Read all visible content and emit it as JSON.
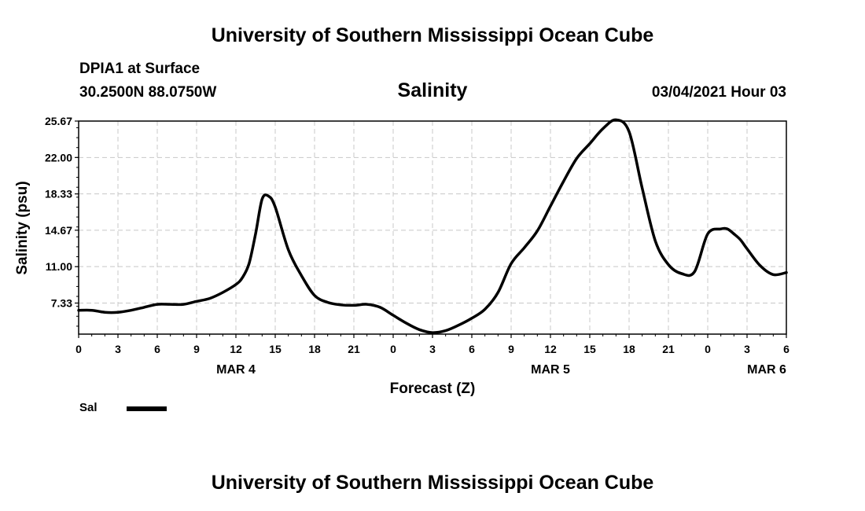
{
  "header": {
    "title": "University of Southern Mississippi Ocean Cube",
    "station": "DPIA1 at Surface",
    "coordinates": "30.2500N 88.0750W",
    "subtitle": "Salinity",
    "datetime": "03/04/2021 Hour 03"
  },
  "footer": {
    "title": "University of Southern Mississippi Ocean Cube"
  },
  "legend": {
    "label": "Sal",
    "color": "#000000"
  },
  "chart_data": {
    "type": "line",
    "title": "Salinity",
    "xlabel": "Forecast (Z)",
    "ylabel": "Salinity (psu)",
    "ylim": [
      4.2,
      25.67
    ],
    "xlim": [
      0,
      54
    ],
    "grid": true,
    "legend_position": "bottom-left",
    "y_ticks": [
      "7.33",
      "11.00",
      "14.67",
      "18.33",
      "22.00",
      "25.67"
    ],
    "x_ticks": [
      "0",
      "3",
      "6",
      "9",
      "12",
      "15",
      "18",
      "21",
      "0",
      "3",
      "6",
      "9",
      "12",
      "15",
      "18",
      "21",
      "0",
      "3",
      "6"
    ],
    "day_labels": [
      {
        "label": "MAR 4",
        "x": 12
      },
      {
        "label": "MAR 5",
        "x": 36
      },
      {
        "label": "MAR 6",
        "x": 52.5
      }
    ],
    "series": [
      {
        "name": "Sal",
        "color": "#000000",
        "x": [
          0,
          1,
          2,
          3,
          4,
          5,
          6,
          7,
          8,
          9,
          10,
          11,
          12,
          12.5,
          13,
          13.5,
          14,
          14.5,
          15,
          16,
          17,
          18,
          19,
          20,
          21,
          22,
          23,
          24,
          25,
          26,
          27,
          28,
          29,
          30,
          31,
          32,
          33,
          34,
          35,
          36,
          37,
          38,
          39,
          40,
          41,
          42,
          43,
          44,
          45,
          46,
          47,
          48,
          49,
          49.5,
          50,
          50.5,
          51,
          52,
          53,
          54
        ],
        "values": [
          6.6,
          6.6,
          6.4,
          6.4,
          6.6,
          6.9,
          7.2,
          7.2,
          7.2,
          7.5,
          7.8,
          8.4,
          9.2,
          9.9,
          11.3,
          14.3,
          17.8,
          18.1,
          17.0,
          12.7,
          10.1,
          8.1,
          7.4,
          7.15,
          7.1,
          7.2,
          6.9,
          6.1,
          5.3,
          4.65,
          4.35,
          4.55,
          5.1,
          5.8,
          6.7,
          8.4,
          11.3,
          12.9,
          14.6,
          17.1,
          19.6,
          21.9,
          23.4,
          24.9,
          25.8,
          24.6,
          18.9,
          13.6,
          11.2,
          10.3,
          10.5,
          14.3,
          14.8,
          14.8,
          14.3,
          13.7,
          12.8,
          11.1,
          10.2,
          10.4
        ]
      }
    ]
  }
}
